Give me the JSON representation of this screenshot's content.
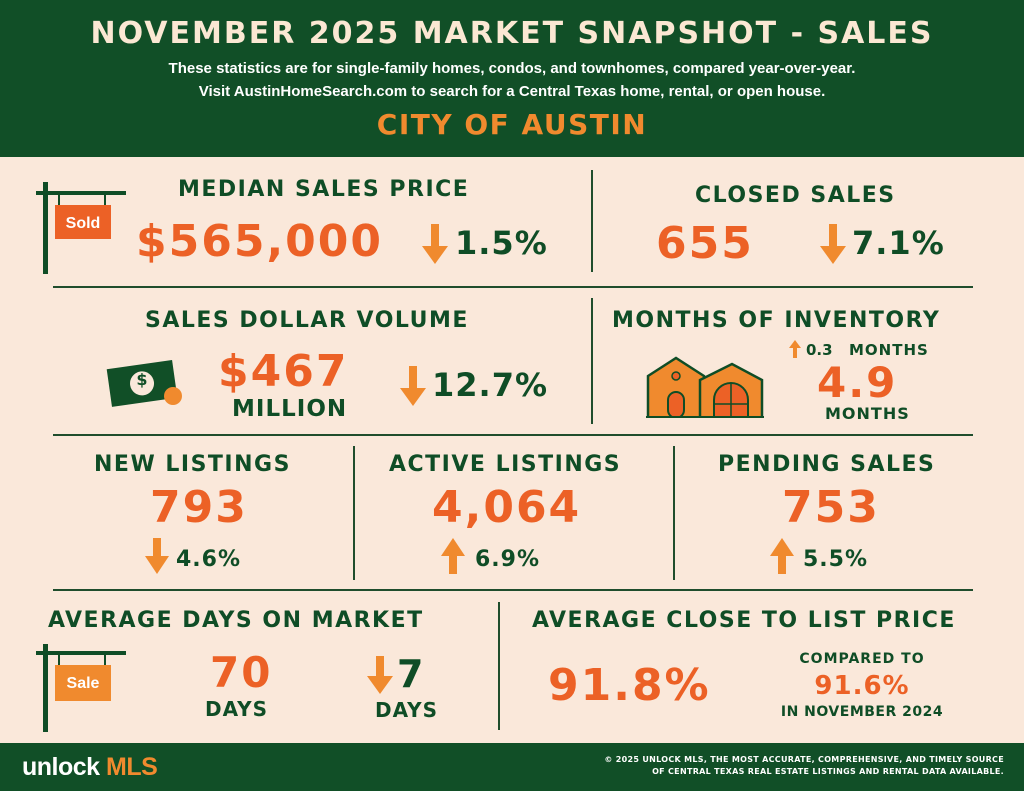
{
  "header": {
    "title": "NOVEMBER 2025 MARKET SNAPSHOT - SALES",
    "subtitle_line1": "These statistics are for single-family homes, condos, and townhomes, compared year-over-year.",
    "subtitle_line2": "Visit AustinHomeSearch.com to search for a Central Texas home, rental, or open house.",
    "city": "CITY OF AUSTIN"
  },
  "median_sales_price": {
    "label": "MEDIAN SALES PRICE",
    "value": "$565,000",
    "change": "1.5%",
    "direction": "down",
    "sign_text": "Sold"
  },
  "closed_sales": {
    "label": "CLOSED SALES",
    "value": "655",
    "change": "7.1%",
    "direction": "down"
  },
  "sales_dollar_volume": {
    "label": "SALES DOLLAR VOLUME",
    "value": "$467",
    "unit": "MILLION",
    "change": "12.7%",
    "direction": "down",
    "bill_symbol": "$"
  },
  "months_of_inventory": {
    "label": "MONTHS OF INVENTORY",
    "change": "0.3",
    "change_unit": "MONTHS",
    "direction": "up",
    "value": "4.9",
    "unit": "MONTHS"
  },
  "new_listings": {
    "label": "NEW LISTINGS",
    "value": "793",
    "change": "4.6%",
    "direction": "down"
  },
  "active_listings": {
    "label": "ACTIVE LISTINGS",
    "value": "4,064",
    "change": "6.9%",
    "direction": "up"
  },
  "pending_sales": {
    "label": "PENDING SALES",
    "value": "753",
    "change": "5.5%",
    "direction": "up"
  },
  "average_days_on_market": {
    "label": "AVERAGE DAYS ON MARKET",
    "value": "70",
    "unit": "DAYS",
    "change": "7",
    "change_unit": "DAYS",
    "direction": "down",
    "sign_text": "Sale"
  },
  "average_close_to_list": {
    "label": "AVERAGE CLOSE TO LIST PRICE",
    "value": "91.8%",
    "compared_label": "COMPARED TO",
    "compared_value": "91.6%",
    "compared_period": "IN NOVEMBER 2024"
  },
  "footer": {
    "logo_part1": "unlock",
    "logo_part2": "MLS",
    "copyright_line1": "© 2025 UNLOCK MLS, THE MOST ACCURATE, COMPREHENSIVE, AND TIMELY SOURCE",
    "copyright_line2": "OF CENTRAL TEXAS REAL ESTATE LISTINGS AND RENTAL DATA AVAILABLE."
  },
  "colors": {
    "header_green": "#114f27",
    "background_cream": "#fae8da",
    "accent_orange": "#ec6126",
    "arrow_orange": "#f08a2e"
  }
}
